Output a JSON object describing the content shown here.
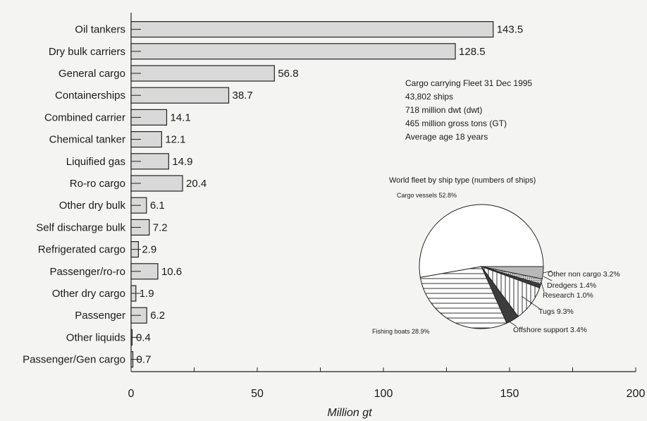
{
  "chart_data": [
    {
      "type": "bar",
      "orientation": "horizontal",
      "categories": [
        "Oil tankers",
        "Dry bulk carriers",
        "General cargo",
        "Containerships",
        "Combined carrier",
        "Chemical tanker",
        "Liquified gas",
        "Ro-ro cargo",
        "Other dry bulk",
        "Self discharge bulk",
        "Refrigerated cargo",
        "Passenger/ro-ro",
        "Other dry cargo",
        "Passenger",
        "Other liquids",
        "Passenger/Gen cargo"
      ],
      "values": [
        143.5,
        128.5,
        56.8,
        38.7,
        14.1,
        12.1,
        14.9,
        20.4,
        6.1,
        7.2,
        2.9,
        10.6,
        1.9,
        6.2,
        0.4,
        0.7
      ],
      "value_labels": [
        "143.5",
        "128.5",
        "56.8",
        "38.7",
        "14.1",
        "12.1",
        "14.9",
        "20.4",
        "6.1",
        "7.2",
        "2.9",
        "10.6",
        "1.9",
        "6.2",
        "0.4",
        "0.7"
      ],
      "xlabel": "Million gt",
      "ylabel": "",
      "xlim": [
        0,
        200
      ],
      "x_ticks": [
        0,
        50,
        100,
        150,
        200
      ],
      "x_tick_labels": [
        "0",
        "50",
        "100",
        "150",
        "200"
      ],
      "bar_color": "#d9d9d9",
      "grid": false
    },
    {
      "type": "pie",
      "title": "World fleet by ship type (numbers of ships)",
      "slices": [
        {
          "label": "Cargo vessels",
          "value": 52.8,
          "value_label": "52.8%",
          "fill": "white"
        },
        {
          "label": "Other non cargo",
          "value": 3.2,
          "value_label": "3.2%",
          "fill": "gray"
        },
        {
          "label": "Dredgers",
          "value": 1.4,
          "value_label": "1.4%",
          "fill": "dots"
        },
        {
          "label": "Research",
          "value": 1.0,
          "value_label": "1.0%",
          "fill": "dark"
        },
        {
          "label": "Tugs",
          "value": 9.3,
          "value_label": "9.3%",
          "fill": "vertical-lines"
        },
        {
          "label": "Offshore support",
          "value": 3.4,
          "value_label": "3.4%",
          "fill": "dark"
        },
        {
          "label": "Fishing boats",
          "value": 28.9,
          "value_label": "28.9%",
          "fill": "horizontal-lines"
        }
      ]
    }
  ],
  "info_box": {
    "lines": [
      "Cargo carrying Fleet 31 Dec 1995",
      "43,802 ships",
      "718 million dwt (dwt)",
      "465 million gross tons (GT)",
      "Average age 18 years"
    ]
  }
}
